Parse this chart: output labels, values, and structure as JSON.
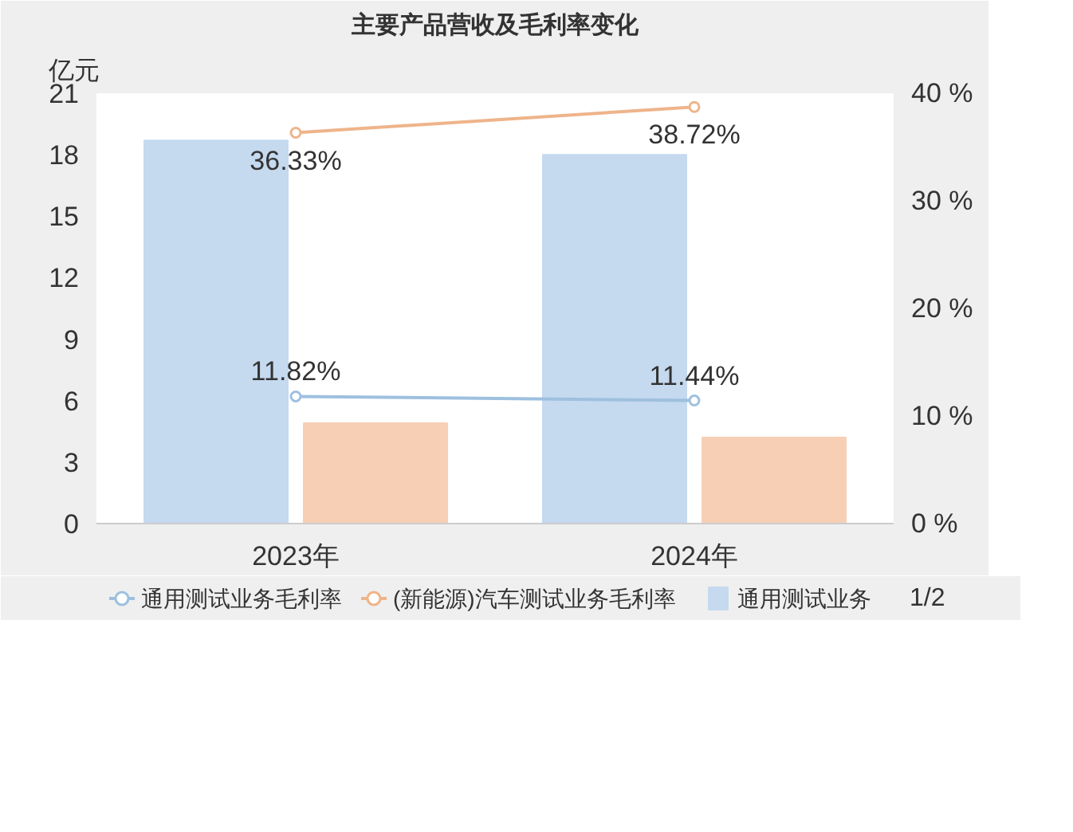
{
  "chart_data": {
    "type": "bar",
    "title": "主要产品营收及毛利率变化",
    "ylabel": "亿元",
    "categories": [
      "2023年",
      "2024年"
    ],
    "series": [
      {
        "name": "通用测试业务",
        "color": "#c5d9ef",
        "values": [
          18.7,
          18.0
        ]
      },
      {
        "color": "#f7cfb5",
        "values": [
          4.9,
          4.2
        ]
      },
      {
        "name": "通用测试业务毛利率",
        "type": "line",
        "axis": "y2",
        "color": "#9ec0df",
        "values": [
          11.82,
          11.44
        ],
        "value_labels": [
          "11.82%",
          "11.44%"
        ]
      },
      {
        "name": "(新能源)汽车测试业务毛利率",
        "type": "line",
        "axis": "y2",
        "color": "#eeb48a",
        "values": [
          36.33,
          38.72
        ],
        "value_labels": [
          "36.33%",
          "38.72%"
        ]
      }
    ],
    "ylim": [
      0,
      21
    ],
    "yticks": [
      0,
      3,
      6,
      9,
      12,
      15,
      18,
      21
    ],
    "y2lim": [
      0,
      40
    ],
    "y2ticks": [
      {
        "value": 0,
        "label": "0 %"
      },
      {
        "value": 10,
        "label": "10 %"
      },
      {
        "value": 20,
        "label": "20 %"
      },
      {
        "value": 30,
        "label": "30 %"
      },
      {
        "value": 40,
        "label": "40 %"
      }
    ],
    "marker": "circle",
    "line_style": "solid",
    "grid": false,
    "legend": "bottom",
    "annotations": [
      "1/2"
    ]
  }
}
